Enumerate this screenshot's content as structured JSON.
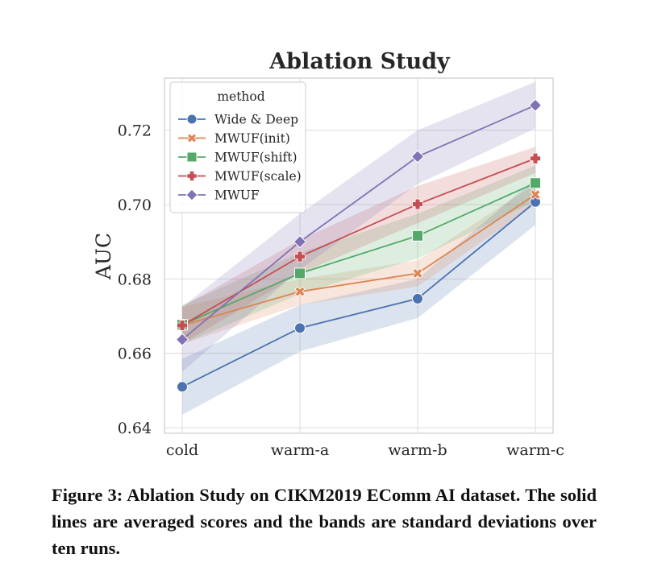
{
  "chart_data": {
    "type": "line",
    "title": "Ablation Study",
    "xlabel": "",
    "ylabel": "AUC",
    "categories": [
      "cold",
      "warm-a",
      "warm-b",
      "warm-c"
    ],
    "ylim": [
      0.6385,
      0.734
    ],
    "yticks": [
      0.64,
      0.66,
      0.68,
      0.7,
      0.72
    ],
    "ytick_labels": [
      "0.64",
      "0.66",
      "0.68",
      "0.70",
      "0.72"
    ],
    "grid": true,
    "legend": {
      "title": "method",
      "position": "top-left"
    },
    "series": [
      {
        "name": "Wide & Deep",
        "color": "#4c72b0",
        "marker": "circle",
        "values": [
          0.651,
          0.6668,
          0.6747,
          0.7007
        ],
        "band_lower": [
          0.6435,
          0.6605,
          0.6695,
          0.6945
        ],
        "band_upper": [
          0.6585,
          0.673,
          0.68,
          0.707
        ]
      },
      {
        "name": "MWUF(init)",
        "color": "#dd8452",
        "marker": "x",
        "values": [
          0.6675,
          0.6766,
          0.6815,
          0.7027
        ],
        "band_lower": [
          0.6625,
          0.673,
          0.678,
          0.7
        ],
        "band_upper": [
          0.6725,
          0.68,
          0.685,
          0.7055
        ]
      },
      {
        "name": "MWUF(shift)",
        "color": "#55a868",
        "marker": "square",
        "values": [
          0.6677,
          0.6815,
          0.6916,
          0.7058
        ],
        "band_lower": [
          0.6625,
          0.676,
          0.6855,
          0.701
        ],
        "band_upper": [
          0.673,
          0.687,
          0.6975,
          0.7105
        ]
      },
      {
        "name": "MWUF(scale)",
        "color": "#c44e52",
        "marker": "plus",
        "values": [
          0.6675,
          0.686,
          0.7001,
          0.7124
        ],
        "band_lower": [
          0.6625,
          0.6815,
          0.695,
          0.7085
        ],
        "band_upper": [
          0.6725,
          0.6905,
          0.705,
          0.7155
        ]
      },
      {
        "name": "MWUF",
        "color": "#8172b3",
        "marker": "diamond",
        "values": [
          0.6637,
          0.69,
          0.7129,
          0.7267
        ],
        "band_lower": [
          0.655,
          0.6825,
          0.7055,
          0.7205
        ],
        "band_upper": [
          0.6725,
          0.6975,
          0.72,
          0.733
        ]
      }
    ]
  },
  "caption": "Figure 3: Ablation Study on CIKM2019 EComm AI dataset. The solid lines are averaged scores and the bands are standard deviations over ten runs."
}
